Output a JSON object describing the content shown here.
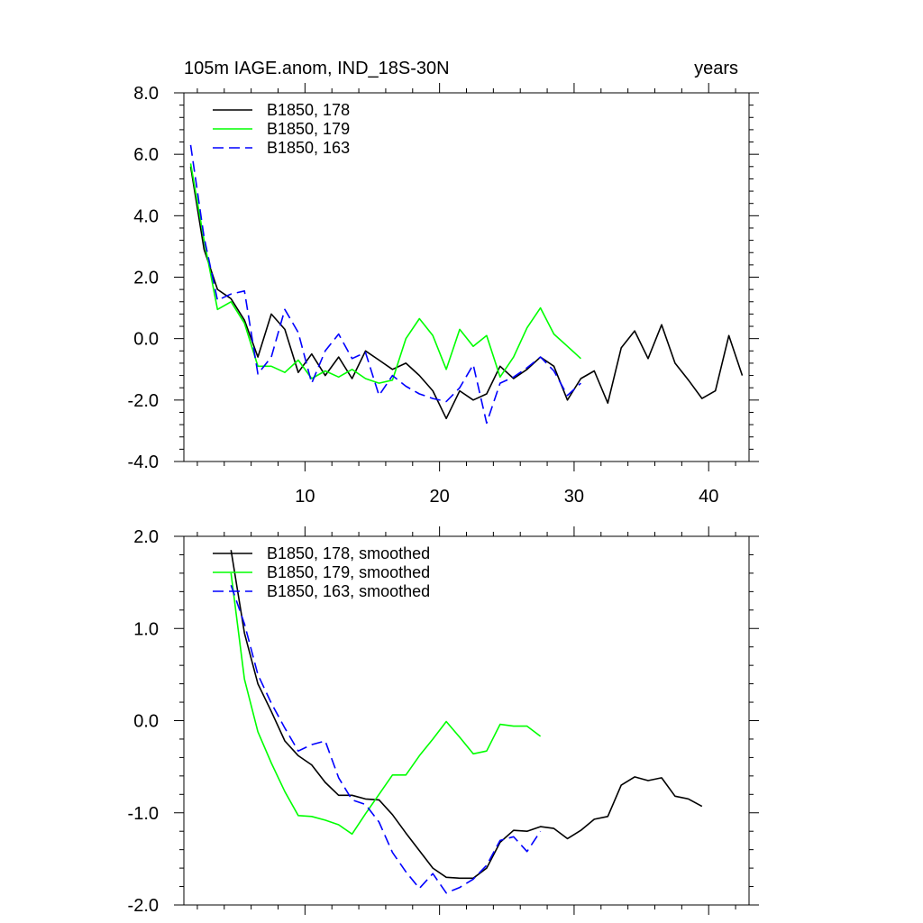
{
  "page": {
    "title": "105m IAGE.anom, IND_18S-30N",
    "units_label": "years"
  },
  "colors": {
    "run178": "#000000",
    "run179": "#00ff00",
    "run163": "#0000ff",
    "axes": "#000000",
    "background": "#ffffff"
  },
  "chart_data": [
    {
      "type": "line",
      "title": "105m IAGE.anom, IND_18S-30N",
      "right_title": "years",
      "xlabel": "",
      "ylabel": "",
      "xlim": [
        1,
        43
      ],
      "ylim": [
        -4.0,
        8.0
      ],
      "x_tick_labels": [
        "10",
        "20",
        "30",
        "40"
      ],
      "x_tick_values": [
        10,
        20,
        30,
        40
      ],
      "y_tick_labels": [
        "-4.0",
        "-2.0",
        "0.0",
        "2.0",
        "4.0",
        "6.0",
        "8.0"
      ],
      "y_tick_values": [
        -4,
        -2,
        0,
        2,
        4,
        6,
        8
      ],
      "grid": false,
      "legend_position": "top-left",
      "series": [
        {
          "name": "B1850, 178",
          "color": "#000000",
          "dash": "solid",
          "x": [
            1.5,
            2.5,
            3.5,
            4.5,
            5.5,
            6.5,
            7.5,
            8.5,
            9.5,
            10.5,
            11.5,
            12.5,
            13.5,
            14.5,
            15.5,
            16.5,
            17.5,
            18.5,
            19.5,
            20.5,
            21.5,
            22.5,
            23.5,
            24.5,
            25.5,
            26.5,
            27.5,
            28.5,
            29.5,
            30.5,
            31.5,
            32.5,
            33.5,
            34.5,
            35.5,
            36.5,
            37.5,
            38.5,
            39.5,
            40.5,
            41.5,
            42.5
          ],
          "y": [
            5.6,
            2.9,
            1.6,
            1.3,
            0.6,
            -0.6,
            0.8,
            0.3,
            -1.1,
            -0.5,
            -1.2,
            -0.6,
            -1.3,
            -0.4,
            -0.7,
            -1.0,
            -0.8,
            -1.2,
            -1.7,
            -2.6,
            -1.7,
            -2.0,
            -1.8,
            -0.9,
            -1.3,
            -1.0,
            -0.6,
            -0.9,
            -2.0,
            -1.3,
            -1.05,
            -2.1,
            -0.3,
            0.25,
            -0.65,
            0.45,
            -0.8,
            -1.35,
            -1.95,
            -1.7,
            0.1,
            -1.2
          ]
        },
        {
          "name": "B1850, 179",
          "color": "#00ff00",
          "dash": "solid",
          "x": [
            1.5,
            2.5,
            3.5,
            4.5,
            5.5,
            6.5,
            7.5,
            8.5,
            9.5,
            10.5,
            11.5,
            12.5,
            13.5,
            14.5,
            15.5,
            16.5,
            17.5,
            18.5,
            19.5,
            20.5,
            21.5,
            22.5,
            23.5,
            24.5,
            25.5,
            26.5,
            27.5,
            28.5,
            29.5,
            30.5
          ],
          "y": [
            5.7,
            3.2,
            0.95,
            1.2,
            0.5,
            -0.9,
            -0.9,
            -1.1,
            -0.7,
            -1.3,
            -1.05,
            -1.25,
            -1.0,
            -1.3,
            -1.45,
            -1.35,
            0.0,
            0.65,
            0.1,
            -1.0,
            0.3,
            -0.25,
            0.1,
            -1.25,
            -0.6,
            0.35,
            1.0,
            0.15,
            -0.25,
            -0.65
          ]
        },
        {
          "name": "B1850, 163",
          "color": "#0000ff",
          "dash": "dashed",
          "x": [
            1.5,
            2.5,
            3.5,
            4.5,
            5.5,
            6.5,
            7.5,
            8.5,
            9.5,
            10.5,
            11.5,
            12.5,
            13.5,
            14.5,
            15.5,
            16.5,
            17.5,
            18.5,
            19.5,
            20.5,
            21.5,
            22.5,
            23.5,
            24.5,
            25.5,
            26.5,
            27.5,
            28.5,
            29.5,
            30.5
          ],
          "y": [
            6.3,
            3.3,
            1.25,
            1.45,
            1.55,
            -1.15,
            -0.6,
            0.95,
            0.2,
            -1.45,
            -0.4,
            0.15,
            -0.65,
            -0.45,
            -1.85,
            -1.2,
            -1.55,
            -1.8,
            -1.95,
            -2.05,
            -1.6,
            -0.85,
            -2.75,
            -1.45,
            -1.25,
            -0.95,
            -0.6,
            -1.05,
            -1.85,
            -1.45
          ]
        }
      ]
    },
    {
      "type": "line",
      "title": "",
      "xlabel": "",
      "ylabel": "",
      "xlim": [
        1,
        43
      ],
      "ylim": [
        -2.0,
        2.0
      ],
      "x_tick_labels": [],
      "x_tick_values": [
        10,
        20,
        30,
        40
      ],
      "y_tick_labels": [
        "-2.0",
        "-1.0",
        "0.0",
        "1.0",
        "2.0"
      ],
      "y_tick_values": [
        -2,
        -1,
        0,
        1,
        2
      ],
      "grid": false,
      "legend_position": "top-left",
      "series": [
        {
          "name": "B1850, 178, smoothed",
          "color": "#000000",
          "dash": "solid",
          "x": [
            4.5,
            5.5,
            6.5,
            7.5,
            8.5,
            9.5,
            10.5,
            11.5,
            12.5,
            13.5,
            14.5,
            15.5,
            16.5,
            17.5,
            18.5,
            19.5,
            20.5,
            21.5,
            22.5,
            23.5,
            24.5,
            25.5,
            26.5,
            27.5,
            28.5,
            29.5,
            30.5,
            31.5,
            32.5,
            33.5,
            34.5,
            35.5,
            36.5,
            37.5,
            38.5,
            39.5
          ],
          "y": [
            1.85,
            0.95,
            0.4,
            0.1,
            -0.22,
            -0.38,
            -0.48,
            -0.67,
            -0.81,
            -0.81,
            -0.85,
            -0.86,
            -1.02,
            -1.22,
            -1.41,
            -1.6,
            -1.7,
            -1.71,
            -1.71,
            -1.6,
            -1.32,
            -1.19,
            -1.2,
            -1.15,
            -1.17,
            -1.28,
            -1.19,
            -1.07,
            -1.04,
            -0.7,
            -0.61,
            -0.65,
            -0.62,
            -0.82,
            -0.85,
            -0.93
          ]
        },
        {
          "name": "B1850, 179, smoothed",
          "color": "#00ff00",
          "dash": "solid",
          "x": [
            4.5,
            5.5,
            6.5,
            7.5,
            8.5,
            9.5,
            10.5,
            11.5,
            12.5,
            13.5,
            14.5,
            15.5,
            16.5,
            17.5,
            18.5,
            19.5,
            20.5,
            21.5,
            22.5,
            23.5,
            24.5,
            25.5,
            26.5,
            27.5
          ],
          "y": [
            1.6,
            0.45,
            -0.12,
            -0.46,
            -0.77,
            -1.03,
            -1.04,
            -1.08,
            -1.13,
            -1.23,
            -1.01,
            -0.8,
            -0.59,
            -0.59,
            -0.38,
            -0.2,
            -0.01,
            -0.18,
            -0.36,
            -0.33,
            -0.04,
            -0.06,
            -0.06,
            -0.17
          ]
        },
        {
          "name": "B1850, 163, smoothed",
          "color": "#0000ff",
          "dash": "dashed",
          "x": [
            4.5,
            5.5,
            6.5,
            7.5,
            8.5,
            9.5,
            10.5,
            11.5,
            12.5,
            13.5,
            14.5,
            15.5,
            16.5,
            17.5,
            18.5,
            19.5,
            20.5,
            21.5,
            22.5,
            23.5,
            24.5,
            25.5,
            26.5,
            27.5
          ],
          "y": [
            1.47,
            1.05,
            0.5,
            0.19,
            -0.08,
            -0.33,
            -0.26,
            -0.22,
            -0.62,
            -0.86,
            -0.91,
            -1.1,
            -1.43,
            -1.64,
            -1.82,
            -1.66,
            -1.87,
            -1.81,
            -1.72,
            -1.57,
            -1.3,
            -1.26,
            -1.42,
            -1.2
          ]
        }
      ]
    }
  ]
}
